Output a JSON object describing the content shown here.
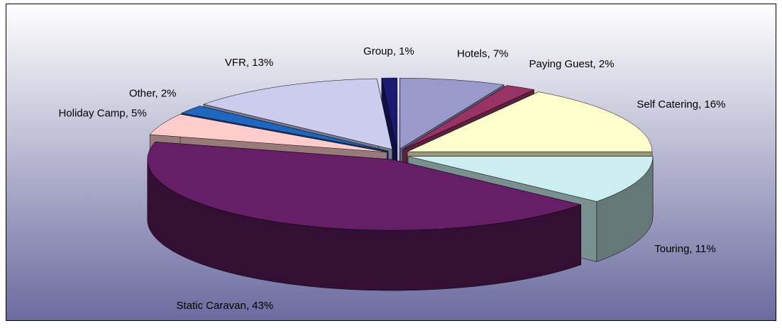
{
  "chart_data": {
    "type": "pie",
    "values": [
      7,
      2,
      16,
      11,
      43,
      5,
      2,
      13,
      1
    ],
    "value_labels": [
      "Hotels, 7%",
      "Paying Guest, 2%",
      "Self Catering, 16%",
      "Touring, 11%",
      "Static Caravan, 43%",
      "Holiday Camp, 5%",
      "Other, 2%",
      "VFR, 13%",
      "Group, 1%"
    ],
    "colors": [
      "#9999cc",
      "#993366",
      "#ffffcc",
      "#cceef0",
      "#661f66",
      "#ffcccc",
      "#1f66c0",
      "#ccccee",
      "#1a1a70"
    ]
  }
}
